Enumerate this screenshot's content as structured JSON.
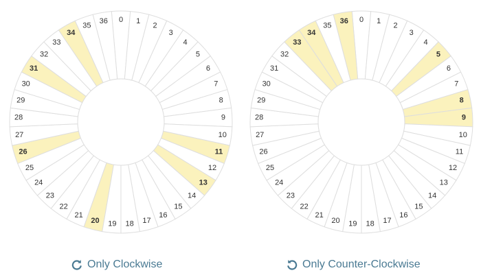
{
  "colors": {
    "highlight_fill": "#fbf2bd",
    "segment_fill": "#ffffff",
    "segment_stroke": "#dedede",
    "label_color": "#333333",
    "link_color": "#4a7a93"
  },
  "icons": {
    "clockwise": "rotate-clockwise-icon",
    "counter_clockwise": "rotate-counter-clockwise-icon"
  },
  "wheels": [
    {
      "numbers": [
        "0",
        "1",
        "2",
        "3",
        "4",
        "5",
        "6",
        "7",
        "8",
        "9",
        "10",
        "11",
        "12",
        "13",
        "14",
        "15",
        "16",
        "17",
        "18",
        "19",
        "20",
        "21",
        "22",
        "23",
        "24",
        "25",
        "26",
        "27",
        "28",
        "29",
        "30",
        "31",
        "32",
        "33",
        "34",
        "35",
        "36"
      ],
      "highlighted": [
        "11",
        "13",
        "20",
        "26",
        "31",
        "34"
      ],
      "button_label": "Only Clockwise"
    },
    {
      "numbers": [
        "0",
        "1",
        "2",
        "3",
        "4",
        "5",
        "6",
        "7",
        "8",
        "9",
        "10",
        "11",
        "12",
        "13",
        "14",
        "15",
        "16",
        "17",
        "18",
        "19",
        "20",
        "21",
        "22",
        "23",
        "24",
        "25",
        "26",
        "27",
        "28",
        "29",
        "30",
        "31",
        "32",
        "33",
        "34",
        "35",
        "36"
      ],
      "highlighted": [
        "5",
        "8",
        "9",
        "33",
        "34",
        "36"
      ],
      "button_label": "Only Counter-Clockwise"
    }
  ]
}
